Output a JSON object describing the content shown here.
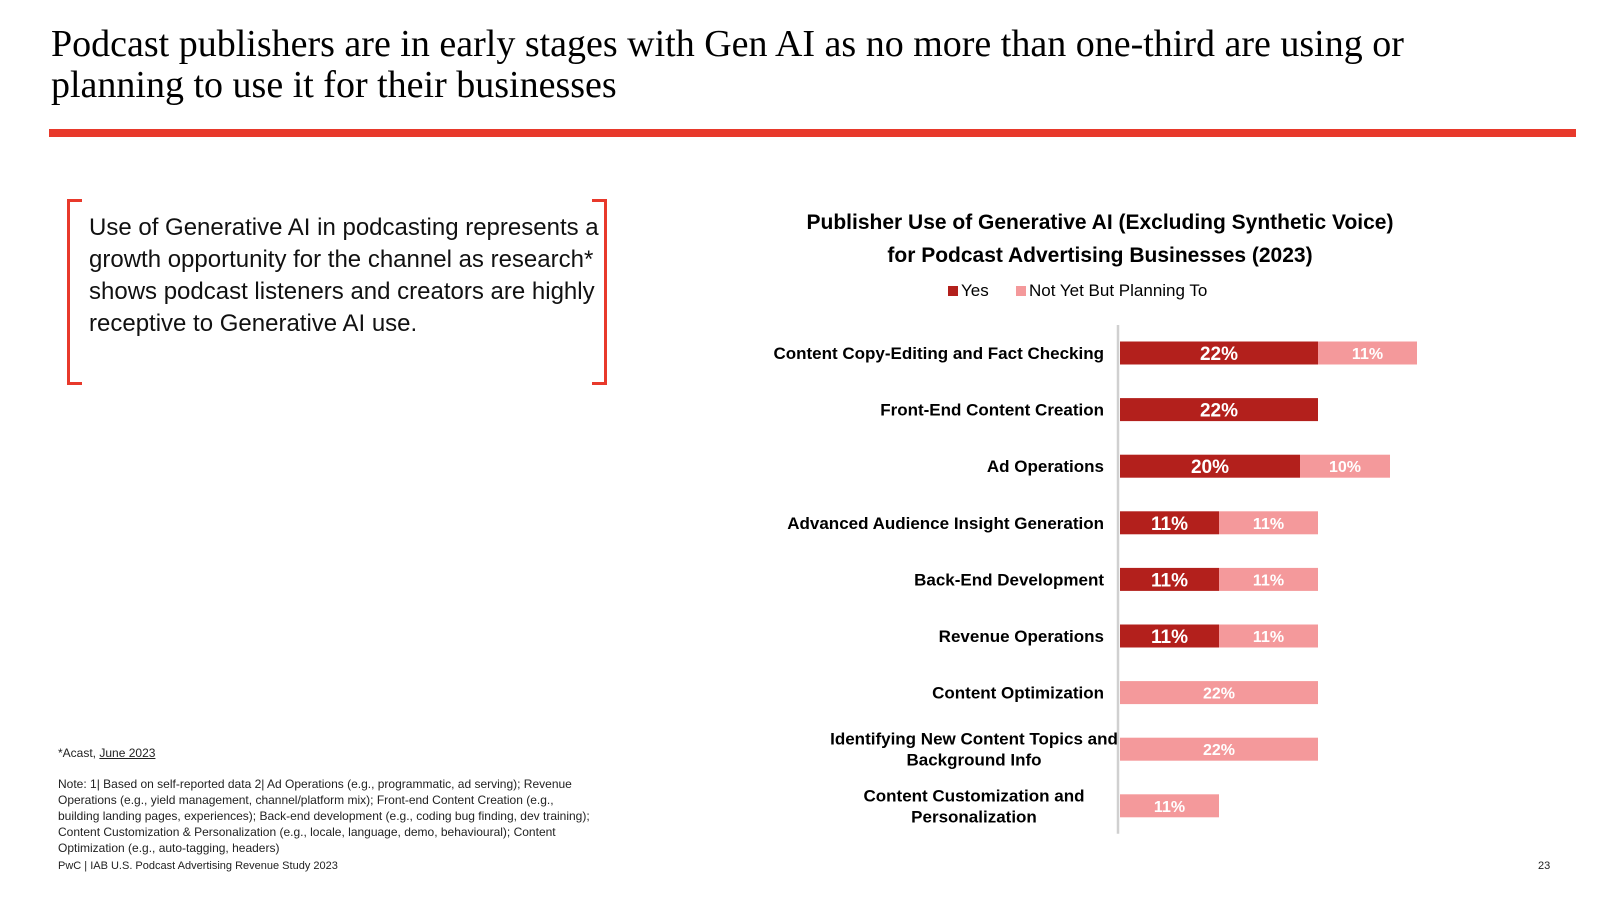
{
  "slide": {
    "title": "Podcast publishers are in early stages with Gen AI as no more than one-third are using or planning to use it for their businesses",
    "callout": "Use of Generative AI in podcasting represents a growth opportunity for the channel as research* shows podcast listeners and creators are highly receptive to Generative AI use.",
    "source_prefix": "*Acast, ",
    "source_link": "June 2023",
    "note": "Note: 1| Based on self-reported data 2| Ad Operations (e.g., programmatic, ad serving); Revenue Operations (e.g., yield management, channel/platform mix); Front-end Content Creation (e.g., building landing pages, experiences); Back-end development (e.g., coding bug finding, dev training); Content Customization & Personalization (e.g., locale, language, demo, behavioural); Content Optimization (e.g., auto-tagging, headers)",
    "footer": "PwC | IAB U.S. Podcast Advertising Revenue Study 2023",
    "page_number": "23"
  },
  "colors": {
    "accent": "#e8392b",
    "yes": "#b3201c",
    "planning": "#f4999b"
  },
  "chart_data": {
    "type": "bar",
    "orientation": "horizontal",
    "stacked": true,
    "title_line1": "Publisher Use of Generative AI (Excluding Synthetic Voice)",
    "title_line2": "for Podcast Advertising Businesses (2023)",
    "legend_position": "top",
    "categories": [
      [
        "Content Copy-Editing and Fact Checking"
      ],
      [
        "Front-End Content Creation"
      ],
      [
        "Ad Operations"
      ],
      [
        "Advanced Audience Insight Generation"
      ],
      [
        "Back-End Development"
      ],
      [
        "Revenue Operations"
      ],
      [
        "Content Optimization"
      ],
      [
        "Identifying New Content Topics and",
        "Background Info"
      ],
      [
        "Content Customization and",
        "Personalization"
      ]
    ],
    "series": [
      {
        "name": "Yes",
        "values": [
          22,
          22,
          20,
          11,
          11,
          11,
          0,
          0,
          0
        ],
        "labels": [
          "22%",
          "22%",
          "20%",
          "11%",
          "11%",
          "11%",
          "",
          "",
          ""
        ]
      },
      {
        "name": "Not Yet But Planning To",
        "values": [
          11,
          0,
          10,
          11,
          11,
          11,
          22,
          22,
          11
        ],
        "labels": [
          "11%",
          "",
          "10%",
          "11%",
          "11%",
          "11%",
          "22%",
          "22%",
          "11%"
        ]
      }
    ],
    "xlim": [
      0,
      40
    ],
    "unit": "%"
  }
}
